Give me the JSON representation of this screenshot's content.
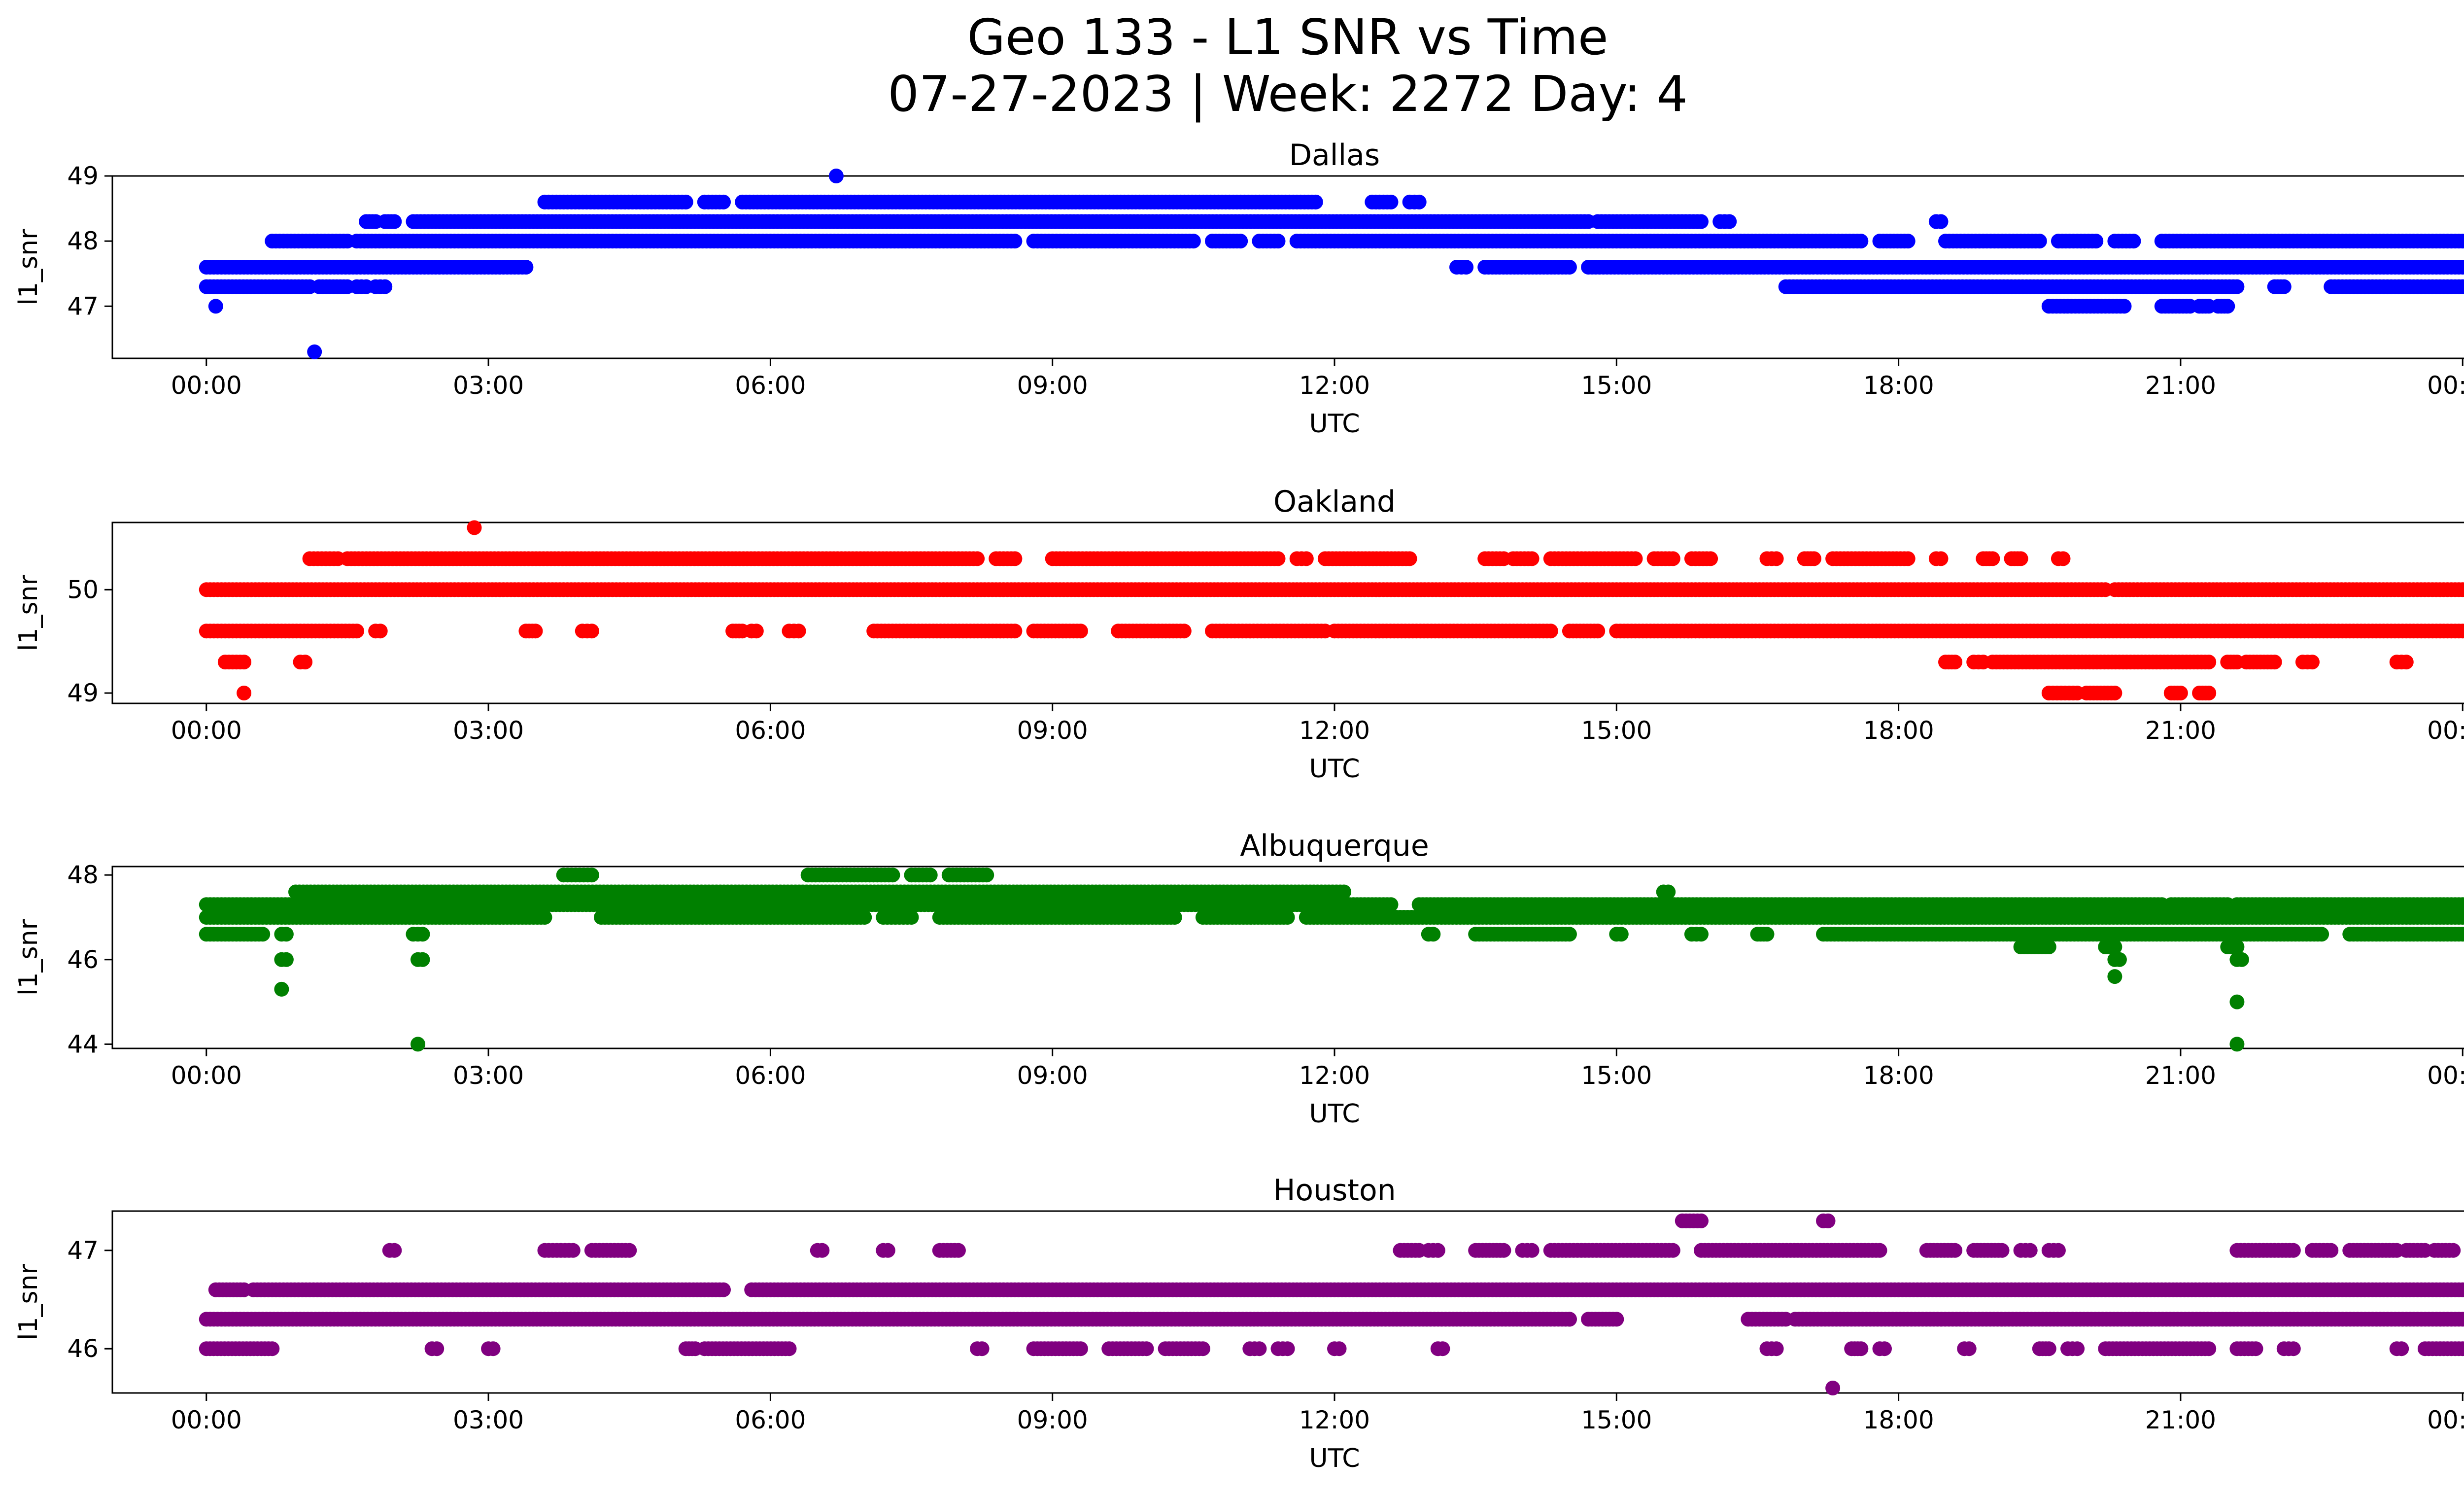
{
  "title_line1": "Geo 133 - L1 SNR vs Time",
  "title_line2": "07-27-2023 | Week: 2272 Day: 4",
  "chart_data": [
    {
      "type": "scatter",
      "title": "Dallas",
      "xlabel": "UTC",
      "ylabel": "l1_snr",
      "color": "#0000ff",
      "xlim": [
        -1.0,
        25.0
      ],
      "ylim": [
        46.2,
        49.0
      ],
      "x_ticks": [
        "00:00",
        "03:00",
        "06:00",
        "09:00",
        "12:00",
        "15:00",
        "18:00",
        "21:00",
        "00:00"
      ],
      "y_ticks": [
        47,
        48,
        49
      ],
      "bands": [
        {
          "y": 48.6,
          "segments": [
            [
              3.6,
              5.1
            ],
            [
              5.3,
              5.5
            ],
            [
              5.7,
              11.8
            ],
            [
              12.4,
              12.6
            ],
            [
              12.8,
              12.9
            ]
          ]
        },
        {
          "y": 48.3,
          "segments": [
            [
              1.7,
              1.8
            ],
            [
              1.9,
              2.0
            ],
            [
              2.2,
              14.7
            ],
            [
              14.8,
              15.9
            ],
            [
              16.1,
              16.2
            ],
            [
              18.4,
              18.45
            ]
          ]
        },
        {
          "y": 48.0,
          "segments": [
            [
              0.7,
              1.5
            ],
            [
              1.6,
              8.6
            ],
            [
              8.8,
              10.5
            ],
            [
              10.7,
              11.0
            ],
            [
              11.2,
              11.4
            ],
            [
              11.6,
              17.6
            ],
            [
              17.8,
              18.1
            ],
            [
              18.5,
              19.5
            ],
            [
              19.7,
              20.1
            ],
            [
              20.3,
              20.5
            ],
            [
              20.8,
              24.4
            ]
          ]
        },
        {
          "y": 47.6,
          "segments": [
            [
              0.0,
              3.4
            ],
            [
              13.3,
              13.4
            ],
            [
              13.6,
              14.5
            ],
            [
              14.7,
              24.0
            ]
          ]
        },
        {
          "y": 47.3,
          "segments": [
            [
              0.0,
              1.1
            ],
            [
              1.2,
              1.5
            ],
            [
              1.6,
              1.7
            ],
            [
              1.8,
              1.9
            ],
            [
              16.8,
              21.6
            ],
            [
              22.0,
              22.1
            ],
            [
              22.6,
              24.0
            ]
          ]
        },
        {
          "y": 47.0,
          "segments": [
            [
              19.6,
              20.4
            ],
            [
              20.8,
              21.1
            ],
            [
              21.2,
              21.3
            ],
            [
              21.4,
              21.5
            ]
          ]
        }
      ],
      "points": [
        [
          0.1,
          47.0
        ],
        [
          1.15,
          46.3
        ],
        [
          6.7,
          49.0
        ]
      ]
    },
    {
      "type": "scatter",
      "title": "Oakland",
      "xlabel": "UTC",
      "ylabel": "l1_snr",
      "color": "#ff0000",
      "xlim": [
        -1.0,
        25.0
      ],
      "ylim": [
        48.9,
        50.65
      ],
      "x_ticks": [
        "00:00",
        "03:00",
        "06:00",
        "09:00",
        "12:00",
        "15:00",
        "18:00",
        "21:00",
        "00:00"
      ],
      "y_ticks": [
        49,
        50
      ],
      "bands": [
        {
          "y": 50.3,
          "segments": [
            [
              1.1,
              1.4
            ],
            [
              1.5,
              8.2
            ],
            [
              8.4,
              8.6
            ],
            [
              9.0,
              11.4
            ],
            [
              11.6,
              11.7
            ],
            [
              11.9,
              12.8
            ],
            [
              13.6,
              13.8
            ],
            [
              13.9,
              14.1
            ],
            [
              14.3,
              15.2
            ],
            [
              15.4,
              15.6
            ],
            [
              15.8,
              16.0
            ],
            [
              16.6,
              16.7
            ],
            [
              17.0,
              17.1
            ],
            [
              17.3,
              18.1
            ],
            [
              18.4,
              18.45
            ],
            [
              18.9,
              19.0
            ],
            [
              19.2,
              19.3
            ],
            [
              19.7,
              19.75
            ]
          ]
        },
        {
          "y": 50.0,
          "segments": [
            [
              0.0,
              20.2
            ],
            [
              20.3,
              24.0
            ]
          ]
        },
        {
          "y": 49.6,
          "segments": [
            [
              0.0,
              1.6
            ],
            [
              1.8,
              1.85
            ],
            [
              3.4,
              3.5
            ],
            [
              4.0,
              4.1
            ],
            [
              5.6,
              5.7
            ],
            [
              5.8,
              5.85
            ],
            [
              6.2,
              6.3
            ],
            [
              7.1,
              8.6
            ],
            [
              8.8,
              9.3
            ],
            [
              9.7,
              10.4
            ],
            [
              10.7,
              11.9
            ],
            [
              12.0,
              14.3
            ],
            [
              14.5,
              14.8
            ],
            [
              15.0,
              24.0
            ]
          ]
        },
        {
          "y": 49.3,
          "segments": [
            [
              0.2,
              0.4
            ],
            [
              1.0,
              1.05
            ],
            [
              18.5,
              18.6
            ],
            [
              18.8,
              18.9
            ],
            [
              19.0,
              21.3
            ],
            [
              21.5,
              21.6
            ],
            [
              21.7,
              22.0
            ],
            [
              22.3,
              22.4
            ],
            [
              23.3,
              23.4
            ]
          ]
        },
        {
          "y": 49.0,
          "segments": [
            [
              19.6,
              19.9
            ],
            [
              20.0,
              20.3
            ],
            [
              20.9,
              21.0
            ],
            [
              21.2,
              21.3
            ]
          ]
        }
      ],
      "points": [
        [
          0.4,
          49.0
        ],
        [
          2.85,
          50.6
        ]
      ]
    },
    {
      "type": "scatter",
      "title": "Albuquerque",
      "xlabel": "UTC",
      "ylabel": "l1_snr",
      "color": "#008000",
      "xlim": [
        -1.0,
        25.0
      ],
      "ylim": [
        43.9,
        48.2
      ],
      "x_ticks": [
        "00:00",
        "03:00",
        "06:00",
        "09:00",
        "12:00",
        "15:00",
        "18:00",
        "21:00",
        "00:00"
      ],
      "y_ticks": [
        44,
        46,
        48
      ],
      "bands": [
        {
          "y": 48.0,
          "segments": [
            [
              3.8,
              4.1
            ],
            [
              6.4,
              7.3
            ],
            [
              7.5,
              7.7
            ],
            [
              7.9,
              8.3
            ]
          ]
        },
        {
          "y": 47.6,
          "segments": [
            [
              0.95,
              12.1
            ],
            [
              15.5,
              15.55
            ]
          ]
        },
        {
          "y": 47.3,
          "segments": [
            [
              0.0,
              12.6
            ],
            [
              12.9,
              20.8
            ],
            [
              20.9,
              21.5
            ],
            [
              21.6,
              24.0
            ]
          ]
        },
        {
          "y": 47.0,
          "segments": [
            [
              0.0,
              3.6
            ],
            [
              4.2,
              7.0
            ],
            [
              7.2,
              7.5
            ],
            [
              7.8,
              10.3
            ],
            [
              10.6,
              11.5
            ],
            [
              11.7,
              24.0
            ]
          ]
        },
        {
          "y": 46.6,
          "segments": [
            [
              0.0,
              0.6
            ],
            [
              0.8,
              0.85
            ],
            [
              2.2,
              2.3
            ],
            [
              13.0,
              13.05
            ],
            [
              13.5,
              14.5
            ],
            [
              15.0,
              15.05
            ],
            [
              15.8,
              15.9
            ],
            [
              16.5,
              16.6
            ],
            [
              17.2,
              22.5
            ],
            [
              22.8,
              24.0
            ]
          ]
        },
        {
          "y": 46.3,
          "segments": [
            [
              19.3,
              19.6
            ],
            [
              20.2,
              20.3
            ],
            [
              21.5,
              21.6
            ]
          ]
        },
        {
          "y": 46.0,
          "segments": [
            [
              0.8,
              0.85
            ],
            [
              2.25,
              2.3
            ],
            [
              20.3,
              20.35
            ],
            [
              21.6,
              21.65
            ]
          ]
        }
      ],
      "points": [
        [
          0.8,
          45.3
        ],
        [
          2.25,
          44.0
        ],
        [
          20.3,
          45.6
        ],
        [
          21.6,
          45.0
        ],
        [
          21.6,
          44.0
        ]
      ]
    },
    {
      "type": "scatter",
      "title": "Houston",
      "xlabel": "UTC",
      "ylabel": "l1_snr",
      "color": "#800080",
      "xlim": [
        -1.0,
        25.0
      ],
      "ylim": [
        45.55,
        47.4
      ],
      "x_ticks": [
        "00:00",
        "03:00",
        "06:00",
        "09:00",
        "12:00",
        "15:00",
        "18:00",
        "21:00",
        "00:00"
      ],
      "y_ticks": [
        46,
        47
      ],
      "bands": [
        {
          "y": 47.0,
          "segments": [
            [
              1.95,
              2.0
            ],
            [
              3.6,
              3.9
            ],
            [
              4.1,
              4.5
            ],
            [
              6.5,
              6.55
            ],
            [
              7.2,
              7.25
            ],
            [
              7.8,
              8.0
            ],
            [
              12.7,
              12.9
            ],
            [
              13.0,
              13.1
            ],
            [
              13.5,
              13.8
            ],
            [
              14.0,
              14.1
            ],
            [
              14.3,
              15.6
            ],
            [
              15.9,
              17.8
            ],
            [
              18.3,
              18.6
            ],
            [
              18.8,
              19.1
            ],
            [
              19.3,
              19.4
            ],
            [
              19.6,
              19.7
            ],
            [
              21.6,
              22.2
            ],
            [
              22.4,
              22.6
            ],
            [
              22.8,
              23.3
            ],
            [
              23.4,
              23.6
            ],
            [
              23.7,
              23.9
            ]
          ]
        },
        {
          "y": 46.6,
          "segments": [
            [
              0.1,
              0.4
            ],
            [
              0.5,
              5.5
            ],
            [
              5.8,
              24.0
            ]
          ]
        },
        {
          "y": 46.3,
          "segments": [
            [
              0.0,
              14.5
            ],
            [
              14.7,
              15.0
            ],
            [
              16.4,
              16.8
            ],
            [
              16.9,
              24.0
            ]
          ]
        },
        {
          "y": 46.0,
          "segments": [
            [
              0.0,
              0.7
            ],
            [
              2.4,
              2.45
            ],
            [
              3.0,
              3.05
            ],
            [
              5.1,
              5.2
            ],
            [
              5.3,
              6.2
            ],
            [
              8.2,
              8.25
            ],
            [
              8.8,
              9.3
            ],
            [
              9.6,
              10.0
            ],
            [
              10.2,
              10.6
            ],
            [
              11.1,
              11.2
            ],
            [
              11.4,
              11.5
            ],
            [
              12.0,
              12.05
            ],
            [
              13.1,
              13.15
            ],
            [
              16.6,
              16.7
            ],
            [
              17.5,
              17.6
            ],
            [
              17.8,
              17.85
            ],
            [
              18.7,
              18.75
            ],
            [
              19.5,
              19.6
            ],
            [
              19.8,
              19.9
            ],
            [
              20.2,
              21.3
            ],
            [
              21.6,
              21.8
            ],
            [
              22.1,
              22.2
            ],
            [
              23.3,
              23.35
            ],
            [
              23.6,
              24.0
            ]
          ]
        },
        {
          "y": 47.3,
          "segments": [
            [
              15.7,
              15.9
            ],
            [
              17.2,
              17.25
            ]
          ]
        }
      ],
      "points": [
        [
          17.3,
          45.6
        ],
        [
          14.5,
          46.3
        ]
      ]
    }
  ]
}
